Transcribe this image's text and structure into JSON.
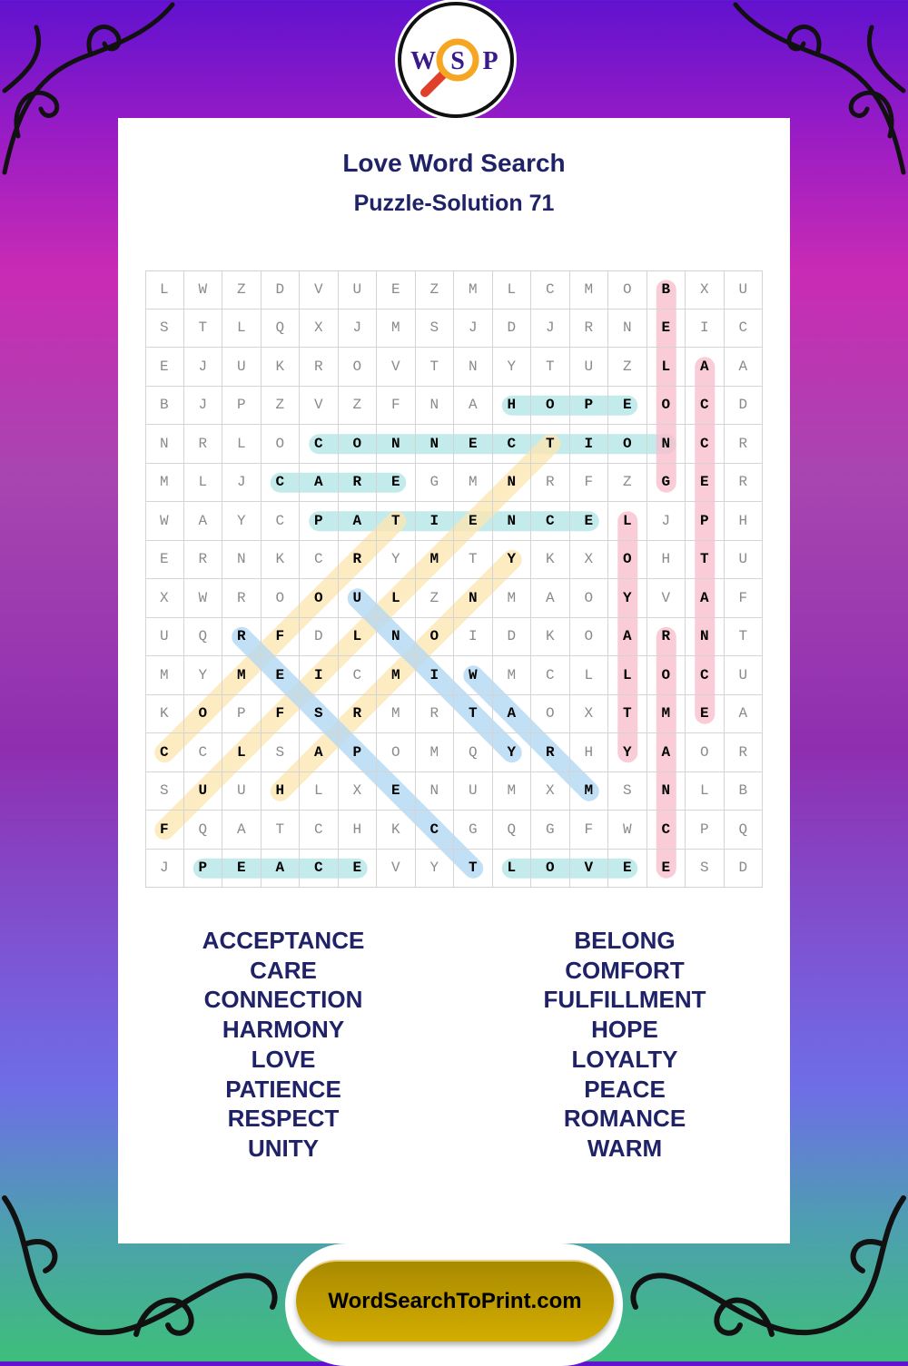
{
  "logo": {
    "letters": [
      "W",
      "S",
      "P"
    ],
    "colors": {
      "letters": "#3a1a8a",
      "lens": "#f5a623",
      "handle": "#e0402a"
    }
  },
  "header": {
    "title": "Love Word Search",
    "subtitle": "Puzzle-Solution 71"
  },
  "grid": [
    "LWZDVUEZMLCMOBXU",
    "STLQXJMSJDJRNEIC",
    "EJUKROVTNYTUZLAA",
    "BJPZVZFNAHOPEOCD",
    "NRLOCONNECTIONCR",
    "MLJCAREGMNRFZGER",
    "WAYCPATIENCELJPH",
    "ERNKCRYMTYKXOHTU",
    "XWROOULZNMAOYVAF",
    "UQRFDLNOIDKOARNT",
    "MYMEICMIWMCLLOCU",
    "KOPFSRMRTAOXTMEA",
    "CCLSAPOMQYRHYAOR",
    "SUUHLXENUMXMSNLB",
    "FQATCHKCGQGFWCPQ",
    "JPEACEVYTLOVEESD"
  ],
  "colors": {
    "teal": "#b5e6e6",
    "pink": "#f7bfcd",
    "yellow": "#fde6b3",
    "blue": "#b3d8f3",
    "text": "#1f2266"
  },
  "solutions": [
    {
      "word": "CONNECTION",
      "start": [
        4,
        4
      ],
      "end": [
        4,
        13
      ],
      "color": "teal"
    },
    {
      "word": "CARE",
      "start": [
        5,
        3
      ],
      "end": [
        5,
        6
      ],
      "color": "teal"
    },
    {
      "word": "PATIENCE",
      "start": [
        6,
        4
      ],
      "end": [
        6,
        11
      ],
      "color": "teal"
    },
    {
      "word": "HOPE",
      "start": [
        3,
        9
      ],
      "end": [
        3,
        12
      ],
      "color": "teal"
    },
    {
      "word": "PEACE",
      "start": [
        15,
        1
      ],
      "end": [
        15,
        5
      ],
      "color": "teal"
    },
    {
      "word": "LOVE",
      "start": [
        15,
        9
      ],
      "end": [
        15,
        12
      ],
      "color": "teal"
    },
    {
      "word": "BELONG",
      "start": [
        0,
        13
      ],
      "end": [
        5,
        13
      ],
      "color": "pink"
    },
    {
      "word": "ACCEPTANCE",
      "start": [
        2,
        14
      ],
      "end": [
        11,
        14
      ],
      "color": "pink"
    },
    {
      "word": "LOYALTY",
      "start": [
        6,
        12
      ],
      "end": [
        12,
        12
      ],
      "color": "pink"
    },
    {
      "word": "ROMANCE",
      "start": [
        9,
        13
      ],
      "end": [
        15,
        13
      ],
      "color": "pink"
    },
    {
      "word": "COMFORT",
      "start": [
        12,
        0
      ],
      "end": [
        6,
        6
      ],
      "color": "yellow"
    },
    {
      "word": "FULFILLMENT",
      "start": [
        14,
        0
      ],
      "end": [
        4,
        10
      ],
      "color": "yellow"
    },
    {
      "word": "HARMONY",
      "start": [
        13,
        3
      ],
      "end": [
        7,
        9
      ],
      "color": "yellow"
    },
    {
      "word": "RESPECT",
      "start": [
        9,
        2
      ],
      "end": [
        15,
        8
      ],
      "color": "blue"
    },
    {
      "word": "UNITY",
      "start": [
        8,
        5
      ],
      "end": [
        12,
        9
      ],
      "color": "blue"
    },
    {
      "word": "WARM",
      "start": [
        10,
        8
      ],
      "end": [
        13,
        11
      ],
      "color": "blue"
    }
  ],
  "word_list": {
    "left": [
      "ACCEPTANCE",
      "CARE",
      "CONNECTION",
      "HARMONY",
      "LOVE",
      "PATIENCE",
      "RESPECT",
      "UNITY"
    ],
    "right": [
      "BELONG",
      "COMFORT",
      "FULFILLMENT",
      "HOPE",
      "LOYALTY",
      "PEACE",
      "ROMANCE",
      "WARM"
    ]
  },
  "footer": {
    "link_label": "WordSearchToPrint.com"
  }
}
